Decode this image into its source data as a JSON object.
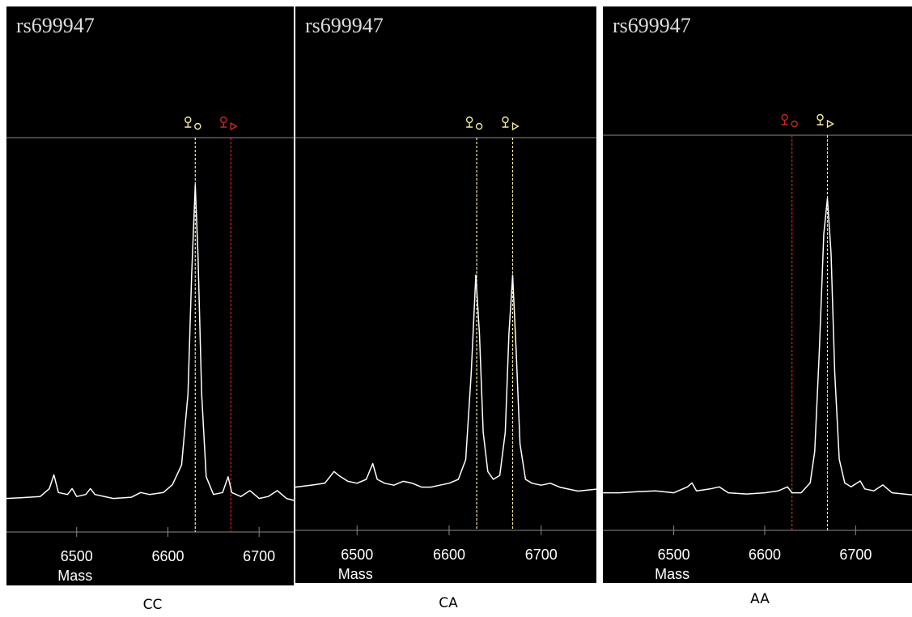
{
  "chart_data": [
    {
      "type": "line",
      "title": "rs699947",
      "xlabel": "Mass",
      "caption": "CC",
      "color": "#ffffff",
      "xlim": [
        6423,
        6738
      ],
      "ylim": [
        0,
        100
      ],
      "xticks": [
        6500,
        6600,
        6700
      ],
      "markers": [
        {
          "x": 6630,
          "color": "#f3eba0"
        },
        {
          "x": 6669,
          "color": "#c8281e"
        }
      ],
      "x": [
        6423,
        6440,
        6460,
        6470,
        6475,
        6480,
        6490,
        6495,
        6500,
        6510,
        6515,
        6520,
        6540,
        6560,
        6570,
        6580,
        6595,
        6605,
        6615,
        6622,
        6626,
        6630,
        6633,
        6637,
        6642,
        6650,
        6660,
        6666,
        6670,
        6680,
        6690,
        6700,
        6710,
        6720,
        6730,
        6738
      ],
      "values": [
        8.5,
        8.7,
        9,
        11,
        14.5,
        10,
        9.5,
        11,
        9,
        9.5,
        11,
        9.5,
        8.5,
        8.8,
        10,
        9.5,
        10,
        12,
        17,
        35,
        65,
        88,
        70,
        35,
        14,
        9.5,
        10,
        14,
        10,
        9,
        10.5,
        8.5,
        9,
        10.5,
        8.5,
        8
      ]
    },
    {
      "type": "line",
      "title": "rs699947",
      "xlabel": "Mass",
      "caption": "CA",
      "color": "#ffffff",
      "xlim": [
        6433,
        6760
      ],
      "ylim": [
        0,
        100
      ],
      "xticks": [
        6500,
        6600,
        6700
      ],
      "markers": [
        {
          "x": 6630,
          "color": "#f3eba0"
        },
        {
          "x": 6669,
          "color": "#f3eba0"
        }
      ],
      "x": [
        6433,
        6450,
        6465,
        6475,
        6480,
        6490,
        6500,
        6510,
        6517,
        6522,
        6530,
        6540,
        6550,
        6560,
        6570,
        6580,
        6590,
        6600,
        6610,
        6618,
        6624,
        6629,
        6633,
        6637,
        6642,
        6648,
        6655,
        6661,
        6665,
        6669,
        6673,
        6677,
        6683,
        6690,
        6700,
        6710,
        6720,
        6730,
        6740,
        6760
      ],
      "values": [
        11,
        11.5,
        12,
        15,
        14,
        12.5,
        12,
        13,
        17,
        13,
        12,
        11.5,
        12.5,
        12,
        11,
        11,
        11.5,
        12,
        13,
        18,
        40,
        65,
        50,
        25,
        15,
        13,
        14,
        25,
        50,
        65,
        45,
        22,
        13,
        12,
        11.5,
        12,
        11,
        10.5,
        10,
        10.5
      ]
    },
    {
      "type": "line",
      "title": "rs699947",
      "xlabel": "Mass",
      "caption": "AA",
      "color": "#ffffff",
      "xlim": [
        6422,
        6762
      ],
      "ylim": [
        0,
        100
      ],
      "xticks": [
        6500,
        6600,
        6700
      ],
      "markers": [
        {
          "x": 6630,
          "color": "#c8281e"
        },
        {
          "x": 6669,
          "color": "#f3eba0"
        }
      ],
      "x": [
        6422,
        6440,
        6460,
        6480,
        6500,
        6515,
        6520,
        6525,
        6540,
        6550,
        6560,
        6580,
        6600,
        6615,
        6625,
        6630,
        6640,
        6650,
        6655,
        6660,
        6665,
        6669,
        6673,
        6677,
        6682,
        6688,
        6695,
        6705,
        6710,
        6720,
        6730,
        6740,
        6762
      ],
      "values": [
        9.5,
        9.5,
        9.8,
        10,
        9.5,
        11,
        12,
        10,
        10.5,
        11,
        9.5,
        9.2,
        9.5,
        10,
        11,
        9.5,
        9.5,
        12,
        20,
        45,
        75,
        84,
        70,
        40,
        18,
        12,
        11,
        12.5,
        10.5,
        10,
        11.5,
        9.5,
        9
      ]
    }
  ]
}
